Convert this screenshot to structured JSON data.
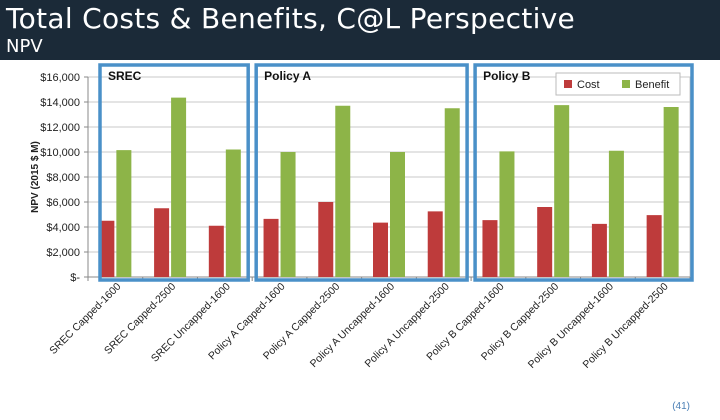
{
  "slide": {
    "title": "Total Costs & Benefits, C@L Perspective",
    "subtitle": "NPV",
    "page_number": "(41)"
  },
  "chart_data": {
    "type": "bar",
    "ylabel": "NPV (2015 $ M)",
    "ylim": [
      0,
      16000
    ],
    "yticks": [
      0,
      2000,
      4000,
      6000,
      8000,
      10000,
      12000,
      14000,
      16000
    ],
    "ytick_labels": [
      "$-",
      "$2,000",
      "$4,000",
      "$6,000",
      "$8,000",
      "$10,000",
      "$12,000",
      "$14,000",
      "$16,000"
    ],
    "categories": [
      "SREC Capped-1600",
      "SREC Capped-2500",
      "SREC Uncapped-1600",
      "Policy A Capped-1600",
      "Policy A Capped-2500",
      "Policy A Uncapped-1600",
      "Policy A Uncapped-2500",
      "Policy B Capped-1600",
      "Policy B Capped-2500",
      "Policy B Uncapped-1600",
      "Policy B Uncapped-2500"
    ],
    "series": [
      {
        "name": "Cost",
        "color": "#be3b3b",
        "values": [
          4500,
          5500,
          4100,
          4650,
          6000,
          4350,
          5250,
          4550,
          5600,
          4250,
          4950
        ]
      },
      {
        "name": "Benefit",
        "color": "#8db448",
        "values": [
          10150,
          14350,
          10200,
          10000,
          13700,
          10000,
          13500,
          10050,
          13750,
          10100,
          13600
        ]
      }
    ],
    "legend": {
      "position": "top-right"
    },
    "groups": [
      {
        "label": "SREC",
        "box_color": "#4a90c8"
      },
      {
        "label": "Policy A",
        "box_color": "#4a90c8"
      },
      {
        "label": "Policy B",
        "box_color": "#4a90c8"
      }
    ],
    "grid": true
  }
}
